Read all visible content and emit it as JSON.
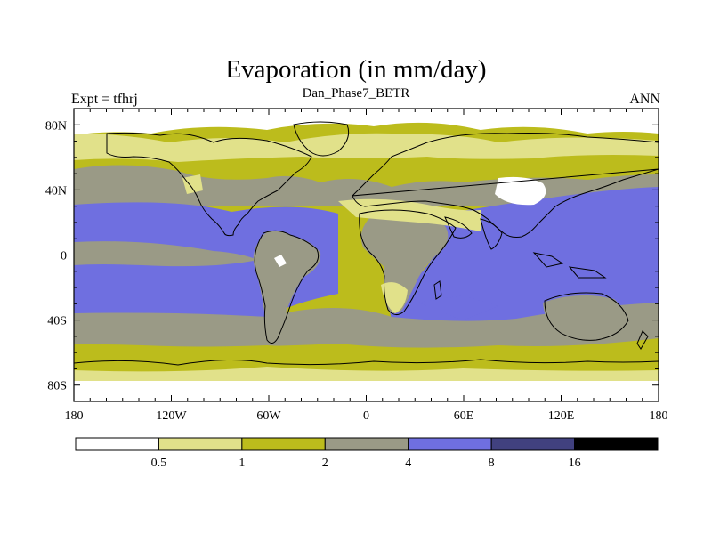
{
  "title": "Evaporation (in mm/day)",
  "subtitle": "Dan_Phase7_BETR",
  "left_string": "Expt = tfhrj",
  "right_string": "ANN",
  "map": {
    "projection": "cylindrical equidistant",
    "lon_range": [
      -180,
      180
    ],
    "lat_range": [
      -90,
      90
    ],
    "lat_labels": [
      {
        "lat": 80,
        "label": "80N"
      },
      {
        "lat": 40,
        "label": "40N"
      },
      {
        "lat": 0,
        "label": "0"
      },
      {
        "lat": -40,
        "label": "40S"
      },
      {
        "lat": -80,
        "label": "80S"
      }
    ],
    "lon_labels": [
      {
        "lon": -180,
        "label": "180"
      },
      {
        "lon": -120,
        "label": "120W"
      },
      {
        "lon": -60,
        "label": "60W"
      },
      {
        "lon": 0,
        "label": "0"
      },
      {
        "lon": 60,
        "label": "60E"
      },
      {
        "lon": 120,
        "label": "120E"
      },
      {
        "lon": 180,
        "label": "180"
      }
    ],
    "colors": {
      "lt_0_5": "#ffffff",
      "c_0_5_1": "#e1e18a",
      "c_1_2": "#bcbc1c",
      "c_2_4": "#9a9a86",
      "c_4_8": "#6f6fe0",
      "c_8_16": "#41417f",
      "gt_16": "#000000"
    }
  },
  "colorbar": {
    "colors": [
      "#ffffff",
      "#e1e18a",
      "#bcbc1c",
      "#9a9a86",
      "#6f6fe0",
      "#41417f",
      "#000000"
    ],
    "labels": [
      "0.5",
      "1",
      "2",
      "4",
      "8",
      "16"
    ]
  }
}
